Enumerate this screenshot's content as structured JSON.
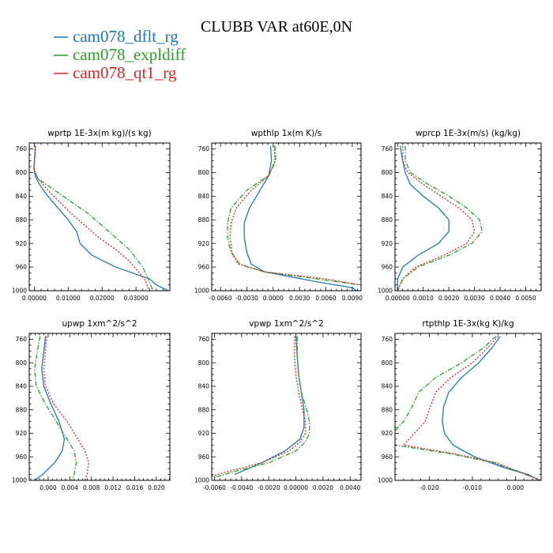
{
  "figure": {
    "title": "CLUBB VAR at60E,0N",
    "colors": {
      "dflt": "#1f77b4",
      "expldiff": "#2ca02c",
      "qt1": "#d62728"
    }
  },
  "legend": [
    {
      "label": "cam078_dflt_rg",
      "color": "#1f77b4",
      "style": "solid"
    },
    {
      "label": "cam078_expldiff",
      "color": "#2ca02c",
      "style": "dashdot"
    },
    {
      "label": "cam078_qt1_rg",
      "color": "#d62728",
      "style": "dotted"
    }
  ],
  "chart_data": [
    {
      "type": "line",
      "title": "wprtp  1E-3x(m kg)/(s kg)",
      "xlim": [
        -0.0015,
        0.04
      ],
      "xticks": [
        0.0,
        0.01,
        0.02,
        0.03
      ],
      "xtick_labels": [
        "0.00000",
        "0.01000",
        "0.02000",
        "0.03000"
      ],
      "ylim": [
        1000,
        750
      ],
      "yticks": [
        760,
        800,
        840,
        880,
        920,
        960,
        1000
      ],
      "series": [
        {
          "key": "dflt",
          "x": [
            0.0003,
            0.0002,
            -0.0001,
            0.0002,
            0.0015,
            0.004,
            0.007,
            0.01,
            0.0125,
            0.0135,
            0.017,
            0.024,
            0.034,
            0.036,
            0.0395
          ],
          "y": [
            755,
            770,
            790,
            805,
            820,
            840,
            860,
            880,
            900,
            920,
            940,
            960,
            980,
            990,
            1000
          ]
        },
        {
          "key": "expldiff",
          "x": [
            0.0003,
            0.0001,
            -0.0001,
            0.001,
            0.006,
            0.011,
            0.016,
            0.02,
            0.024,
            0.028,
            0.032,
            0.034,
            0.035
          ],
          "y": [
            755,
            775,
            795,
            810,
            830,
            850,
            870,
            890,
            910,
            930,
            960,
            985,
            1000
          ]
        },
        {
          "key": "qt1",
          "x": [
            0.0003,
            0.0001,
            -0.0001,
            0.001,
            0.004,
            0.0075,
            0.011,
            0.015,
            0.019,
            0.024,
            0.028,
            0.0325,
            0.034
          ],
          "y": [
            755,
            775,
            795,
            810,
            830,
            850,
            870,
            890,
            910,
            930,
            950,
            980,
            1000
          ]
        }
      ]
    },
    {
      "type": "line",
      "title": "wpthlp  1x(m K)/s",
      "xlim": [
        -0.007,
        0.01
      ],
      "xticks": [
        -0.006,
        -0.003,
        0.0,
        0.003,
        0.006,
        0.009
      ],
      "xtick_labels": [
        "-0.0060",
        "-0.0030",
        "0.0000",
        "0.0030",
        "0.0060",
        "0.0090"
      ],
      "ylim": [
        1000,
        750
      ],
      "yticks": [
        760,
        800,
        840,
        880,
        920,
        960,
        1000
      ],
      "series": [
        {
          "key": "dflt",
          "x": [
            -0.0003,
            -0.0002,
            -0.0005,
            -0.0015,
            -0.0027,
            -0.0033,
            -0.0033,
            -0.003,
            -0.0025,
            -0.001,
            0.005,
            0.009,
            0.0095
          ],
          "y": [
            755,
            780,
            805,
            830,
            860,
            885,
            910,
            935,
            955,
            968,
            985,
            995,
            1000
          ]
        },
        {
          "key": "expldiff",
          "x": [
            0.0002,
            0.0003,
            -0.0005,
            -0.003,
            -0.0048,
            -0.0052,
            -0.0052,
            -0.0048,
            -0.0038,
            -0.001,
            0.005,
            0.0098
          ],
          "y": [
            755,
            780,
            805,
            830,
            860,
            885,
            910,
            935,
            955,
            968,
            980,
            990
          ]
        },
        {
          "key": "qt1",
          "x": [
            0.0001,
            0.0002,
            -0.0005,
            -0.0025,
            -0.0042,
            -0.0048,
            -0.0049,
            -0.0047,
            -0.004,
            -0.001,
            0.006,
            0.0098
          ],
          "y": [
            755,
            780,
            805,
            830,
            860,
            885,
            910,
            935,
            955,
            968,
            980,
            990
          ]
        }
      ]
    },
    {
      "type": "line",
      "title": "wprcp  1E-3x(m/s) (kg/kg)",
      "xlim": [
        -0.0001,
        0.0056
      ],
      "xticks": [
        0.0,
        0.001,
        0.002,
        0.003,
        0.004,
        0.005
      ],
      "xtick_labels": [
        "0.00000",
        "0.0010",
        "0.0020",
        "0.0030",
        "0.0040",
        "0.0050"
      ],
      "ylim": [
        1000,
        750
      ],
      "yticks": [
        760,
        800,
        840,
        880,
        920,
        960,
        1000
      ],
      "series": [
        {
          "key": "dflt",
          "x": [
            0.0001,
            0.0002,
            0.0003,
            0.0005,
            0.001,
            0.0016,
            0.002,
            0.002,
            0.0016,
            0.0008,
            0.0002,
            0.0,
            0.0
          ],
          "y": [
            755,
            780,
            800,
            820,
            840,
            860,
            880,
            900,
            920,
            940,
            960,
            980,
            1000
          ]
        },
        {
          "key": "expldiff",
          "x": [
            0.0003,
            0.0003,
            0.0005,
            0.0012,
            0.002,
            0.0027,
            0.0032,
            0.0033,
            0.0029,
            0.002,
            0.0008,
            0.0002,
            0.0
          ],
          "y": [
            755,
            780,
            800,
            820,
            840,
            860,
            880,
            900,
            920,
            940,
            960,
            980,
            1000
          ]
        },
        {
          "key": "qt1",
          "x": [
            0.0002,
            0.0002,
            0.0004,
            0.001,
            0.0017,
            0.0024,
            0.0029,
            0.003,
            0.0027,
            0.0018,
            0.0007,
            0.0002,
            0.0
          ],
          "y": [
            755,
            780,
            800,
            820,
            840,
            860,
            880,
            900,
            920,
            940,
            960,
            980,
            1000
          ]
        }
      ]
    },
    {
      "type": "line",
      "title": "upwp   1xm^2/s^2",
      "xlim": [
        -0.0035,
        0.0225
      ],
      "xticks": [
        0.0,
        0.004,
        0.008,
        0.012,
        0.016,
        0.02
      ],
      "xtick_labels": [
        "0.000",
        "0.004",
        "0.008",
        "0.012",
        "0.016",
        "0.020"
      ],
      "ylim": [
        1000,
        750
      ],
      "yticks": [
        760,
        800,
        840,
        880,
        920,
        960,
        1000
      ],
      "series": [
        {
          "key": "dflt",
          "x": [
            -0.0005,
            -0.0008,
            -0.0012,
            -0.0008,
            0.0005,
            0.002,
            0.003,
            0.0026,
            0.0012,
            -0.001,
            -0.0025
          ],
          "y": [
            755,
            780,
            810,
            840,
            870,
            900,
            930,
            950,
            970,
            990,
            1000
          ]
        },
        {
          "key": "expldiff",
          "x": [
            -0.0015,
            -0.002,
            -0.0025,
            -0.0022,
            -0.0005,
            0.0015,
            0.0035,
            0.0048,
            0.0052,
            0.0048,
            0.0043
          ],
          "y": [
            755,
            780,
            810,
            840,
            870,
            900,
            930,
            950,
            970,
            990,
            1000
          ]
        },
        {
          "key": "qt1",
          "x": [
            -0.0003,
            -0.0005,
            -0.0008,
            -0.0005,
            0.001,
            0.0035,
            0.0055,
            0.0068,
            0.0075,
            0.0072,
            0.0068
          ],
          "y": [
            755,
            780,
            810,
            840,
            870,
            900,
            930,
            950,
            970,
            990,
            1000
          ]
        }
      ]
    },
    {
      "type": "line",
      "title": "vpwp   1xm^2/s^2",
      "xlim": [
        -0.0062,
        0.0048
      ],
      "xticks": [
        -0.006,
        -0.004,
        -0.002,
        0.0,
        0.002,
        0.004
      ],
      "xtick_labels": [
        "-0.0060",
        "-0.0040",
        "-0.0020",
        "0.00000",
        "0.0020",
        "0.0040"
      ],
      "ylim": [
        1000,
        750
      ],
      "yticks": [
        760,
        800,
        840,
        880,
        920,
        960,
        1000
      ],
      "series": [
        {
          "key": "dflt",
          "x": [
            0.0,
            0.0001,
            0.0002,
            0.0004,
            0.0006,
            0.0006,
            0.0003,
            -0.0008,
            -0.0025,
            -0.0045
          ],
          "y": [
            755,
            790,
            820,
            850,
            880,
            910,
            930,
            950,
            970,
            990
          ]
        },
        {
          "key": "expldiff",
          "x": [
            0.0001,
            0.0001,
            0.0002,
            0.0004,
            0.0008,
            0.001,
            0.001,
            0.0007,
            0.0,
            -0.002,
            -0.0045,
            -0.006
          ],
          "y": [
            755,
            790,
            820,
            850,
            880,
            900,
            920,
            935,
            950,
            970,
            985,
            995
          ]
        },
        {
          "key": "qt1",
          "x": [
            -0.0001,
            -0.0001,
            0.0,
            0.0002,
            0.0005,
            0.0007,
            0.0007,
            0.0003,
            -0.0005,
            -0.0025,
            -0.005,
            -0.0065
          ],
          "y": [
            755,
            790,
            820,
            850,
            880,
            900,
            920,
            935,
            950,
            970,
            985,
            995
          ]
        }
      ]
    },
    {
      "type": "line",
      "title": "rtpthlp  1E-3x(kg K)/kg",
      "xlim": [
        -0.028,
        0.006
      ],
      "xticks": [
        -0.02,
        -0.01,
        0.0
      ],
      "xtick_labels": [
        "-0.020",
        "-0.010",
        "0.000"
      ],
      "ylim": [
        1000,
        750
      ],
      "yticks": [
        760,
        800,
        840,
        880,
        920,
        960,
        1000
      ],
      "series": [
        {
          "key": "dflt",
          "x": [
            -0.0035,
            -0.0055,
            -0.0085,
            -0.0125,
            -0.0155,
            -0.0167,
            -0.017,
            -0.0165,
            -0.0145,
            -0.0095,
            -0.002,
            0.003,
            0.0055
          ],
          "y": [
            755,
            775,
            800,
            825,
            850,
            875,
            900,
            920,
            940,
            960,
            980,
            990,
            1000
          ]
        },
        {
          "key": "expldiff",
          "x": [
            -0.0045,
            -0.0075,
            -0.0125,
            -0.0185,
            -0.0225,
            -0.024,
            -0.026,
            -0.0285,
            -0.028,
            -0.015,
            -0.005,
            0.006
          ],
          "y": [
            755,
            775,
            800,
            825,
            850,
            875,
            900,
            920,
            940,
            955,
            970,
            1000
          ]
        },
        {
          "key": "qt1",
          "x": [
            -0.004,
            -0.0065,
            -0.01,
            -0.015,
            -0.0185,
            -0.0198,
            -0.021,
            -0.0235,
            -0.026,
            -0.014,
            -0.0045,
            0.006
          ],
          "y": [
            755,
            775,
            800,
            825,
            850,
            875,
            900,
            920,
            940,
            955,
            970,
            1000
          ]
        }
      ]
    }
  ]
}
